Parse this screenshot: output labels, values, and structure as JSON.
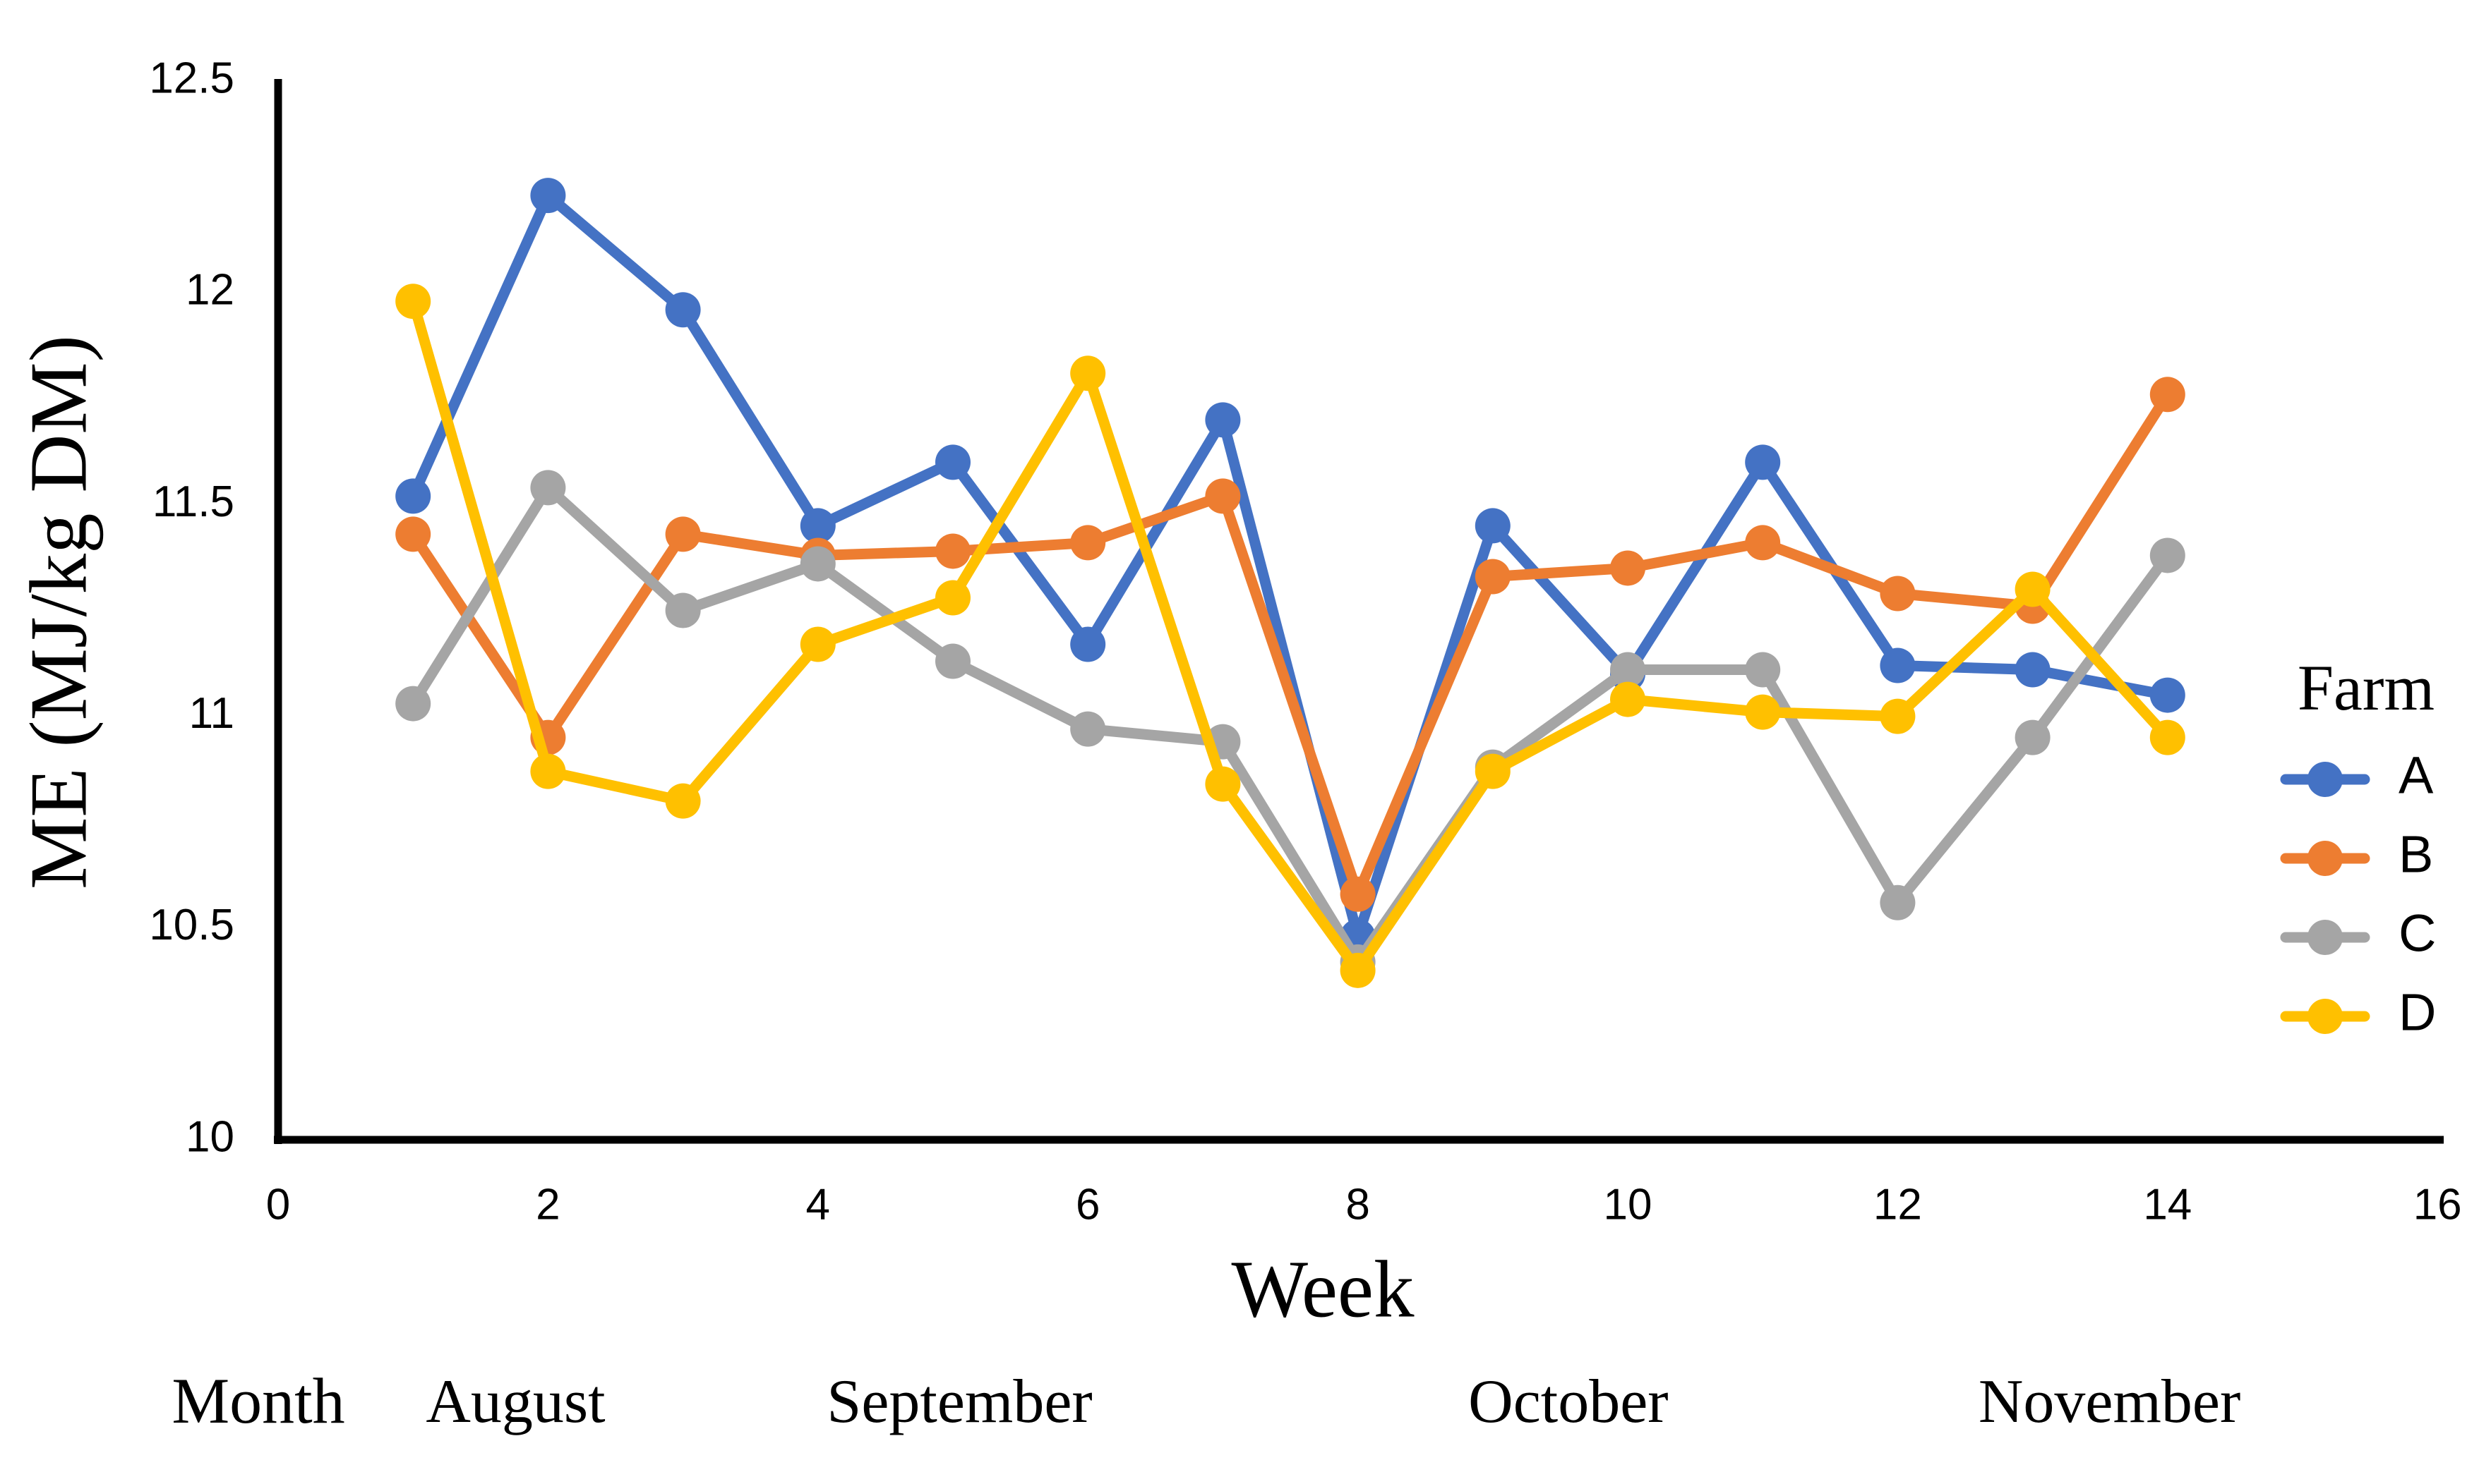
{
  "chart_data": {
    "type": "line",
    "title": "",
    "xlabel": "Week",
    "ylabel": "ME (MJ/kg DM)",
    "xlim": [
      0,
      16
    ],
    "ylim": [
      10,
      12.5
    ],
    "grid": false,
    "x_ticks": [
      0,
      2,
      4,
      6,
      8,
      10,
      12,
      14,
      16
    ],
    "y_ticks": [
      10,
      10.5,
      11,
      11.5,
      12,
      12.5
    ],
    "y_tick_labels": [
      "10",
      "10.5",
      "11",
      "11.5",
      "12",
      "12.5"
    ],
    "x": [
      1,
      2,
      3,
      4,
      5,
      6,
      7,
      8,
      9,
      10,
      11,
      12,
      13,
      14
    ],
    "series": [
      {
        "name": "A",
        "color": "#4472C4",
        "values": [
          11.52,
          12.23,
          11.96,
          11.45,
          11.6,
          11.17,
          11.7,
          10.48,
          11.45,
          11.1,
          11.6,
          11.12,
          11.11,
          11.05
        ]
      },
      {
        "name": "B",
        "color": "#ED7D31",
        "values": [
          11.43,
          10.95,
          11.43,
          11.38,
          11.39,
          11.41,
          11.52,
          10.58,
          11.33,
          11.35,
          11.41,
          11.29,
          11.26,
          11.76
        ]
      },
      {
        "name": "C",
        "color": "#A5A5A5",
        "values": [
          11.03,
          11.54,
          11.25,
          11.36,
          11.13,
          10.97,
          10.94,
          10.42,
          10.88,
          11.11,
          11.11,
          10.56,
          10.95,
          11.38
        ]
      },
      {
        "name": "D",
        "color": "#FFC000",
        "values": [
          11.98,
          10.87,
          10.8,
          11.17,
          11.28,
          11.81,
          10.84,
          10.4,
          10.87,
          11.04,
          11.01,
          11.0,
          11.3,
          10.95
        ]
      }
    ],
    "legend": {
      "title": "Farm",
      "position": "right",
      "entries": [
        "A",
        "B",
        "C",
        "D"
      ]
    },
    "month_row": {
      "label": "Month",
      "months": [
        {
          "text": "August",
          "week": 1.76
        },
        {
          "text": "September",
          "week": 5.05
        },
        {
          "text": "October",
          "week": 9.56
        },
        {
          "text": "November",
          "week": 13.57
        }
      ]
    }
  }
}
